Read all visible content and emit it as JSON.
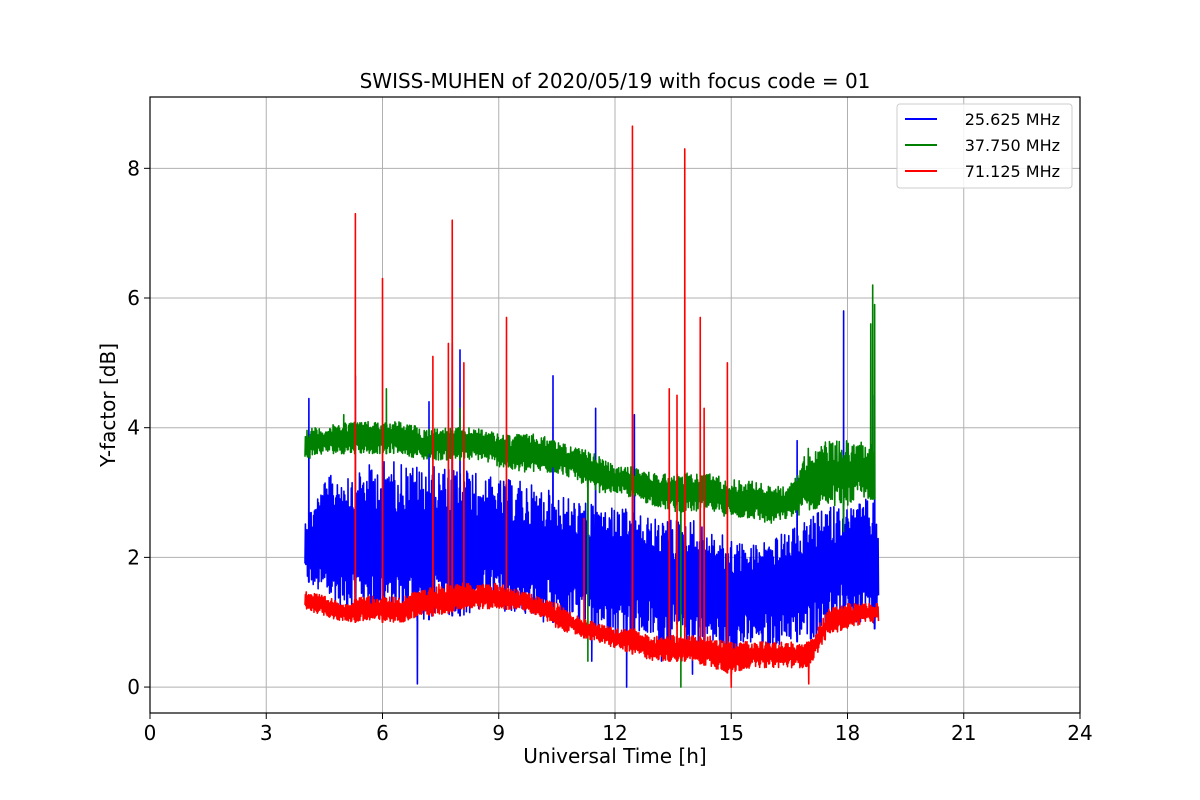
{
  "chart_data": {
    "type": "line",
    "title": "SWISS-MUHEN of 2020/05/19 with focus code = 01",
    "xlabel": "Universal Time [h]",
    "ylabel": "Y-factor [dB]",
    "xlim": [
      0,
      24
    ],
    "ylim": [
      -0.4,
      9.1
    ],
    "xticks": [
      "0",
      "3",
      "6",
      "9",
      "12",
      "15",
      "18",
      "21",
      "24"
    ],
    "yticks": [
      "0",
      "2",
      "4",
      "6",
      "8"
    ],
    "grid": true,
    "legend_position": "top-right",
    "series": [
      {
        "name": "25.625 MHz",
        "color": "#0000ff",
        "x": [
          4.0,
          4.5,
          5.0,
          5.5,
          6.0,
          6.5,
          7.0,
          7.5,
          8.0,
          8.5,
          9.0,
          9.5,
          10.0,
          10.5,
          11.0,
          11.5,
          12.0,
          12.5,
          13.0,
          13.5,
          14.0,
          14.5,
          15.0,
          15.5,
          16.0,
          16.5,
          17.0,
          17.5,
          18.0,
          18.5,
          18.8
        ],
        "low": [
          1.7,
          1.3,
          1.2,
          1.2,
          1.1,
          1.1,
          1.0,
          1.1,
          1.1,
          1.1,
          1.2,
          1.1,
          1.0,
          1.0,
          0.9,
          0.9,
          0.8,
          0.8,
          0.7,
          0.6,
          0.7,
          0.6,
          0.5,
          0.6,
          0.6,
          0.7,
          0.7,
          0.9,
          1.0,
          0.9,
          0.9
        ],
        "high": [
          2.6,
          3.2,
          3.4,
          3.4,
          3.5,
          3.5,
          3.4,
          3.4,
          3.4,
          3.3,
          3.2,
          3.2,
          3.1,
          3.0,
          2.9,
          2.8,
          2.8,
          2.7,
          2.6,
          2.6,
          2.6,
          2.4,
          2.3,
          2.2,
          2.3,
          2.4,
          2.6,
          2.8,
          2.8,
          2.9,
          2.8
        ],
        "spikes": [
          [
            4.1,
            4.45
          ],
          [
            5.3,
            4.8
          ],
          [
            7.2,
            4.4
          ],
          [
            7.8,
            5.3
          ],
          [
            8.0,
            5.2
          ],
          [
            10.4,
            4.8
          ],
          [
            11.5,
            4.3
          ],
          [
            12.5,
            4.2
          ],
          [
            16.7,
            3.8
          ],
          [
            17.9,
            5.8
          ],
          [
            18.7,
            4.5
          ]
        ],
        "dips": [
          [
            6.9,
            0.05
          ],
          [
            11.4,
            0.4
          ],
          [
            12.3,
            0.0
          ],
          [
            13.2,
            0.4
          ],
          [
            14.0,
            0.2
          ]
        ]
      },
      {
        "name": "37.750 MHz",
        "color": "#008000",
        "x": [
          4.0,
          4.5,
          5.0,
          5.5,
          6.0,
          6.5,
          7.0,
          7.5,
          8.0,
          8.5,
          9.0,
          9.5,
          10.0,
          10.5,
          11.0,
          11.5,
          12.0,
          12.5,
          13.0,
          13.5,
          14.0,
          14.5,
          15.0,
          15.5,
          16.0,
          16.5,
          17.0,
          17.5,
          18.0,
          18.5,
          18.7
        ],
        "low": [
          3.5,
          3.6,
          3.6,
          3.6,
          3.6,
          3.6,
          3.5,
          3.5,
          3.5,
          3.5,
          3.4,
          3.3,
          3.3,
          3.3,
          3.2,
          3.0,
          3.0,
          2.9,
          2.8,
          2.7,
          2.7,
          2.7,
          2.6,
          2.6,
          2.5,
          2.6,
          2.7,
          2.8,
          2.8,
          2.9,
          2.9
        ],
        "high": [
          4.0,
          4.0,
          4.1,
          4.1,
          4.1,
          4.1,
          4.0,
          4.0,
          4.0,
          4.0,
          3.9,
          3.9,
          3.9,
          3.8,
          3.7,
          3.6,
          3.4,
          3.4,
          3.3,
          3.3,
          3.3,
          3.3,
          3.2,
          3.2,
          3.1,
          3.1,
          3.7,
          3.8,
          3.8,
          3.8,
          3.8
        ],
        "spikes": [
          [
            5.0,
            4.2
          ],
          [
            6.1,
            4.6
          ],
          [
            8.0,
            4.3
          ],
          [
            18.6,
            5.6
          ],
          [
            18.65,
            6.2
          ],
          [
            18.7,
            5.9
          ]
        ],
        "dips": [
          [
            11.3,
            0.4
          ],
          [
            13.7,
            0.0
          ],
          [
            17.9,
            2.4
          ]
        ]
      },
      {
        "name": "71.125 MHz",
        "color": "#ff0000",
        "x": [
          4.0,
          4.5,
          5.0,
          5.5,
          6.0,
          6.5,
          7.0,
          7.5,
          8.0,
          8.5,
          9.0,
          9.5,
          10.0,
          10.5,
          11.0,
          11.5,
          12.0,
          12.5,
          13.0,
          13.5,
          14.0,
          14.5,
          15.0,
          15.5,
          16.0,
          16.5,
          17.0,
          17.5,
          18.0,
          18.5,
          18.8
        ],
        "low": [
          1.2,
          1.1,
          1.0,
          1.0,
          1.0,
          1.0,
          1.1,
          1.1,
          1.2,
          1.2,
          1.2,
          1.2,
          1.1,
          0.9,
          0.8,
          0.7,
          0.6,
          0.5,
          0.4,
          0.4,
          0.4,
          0.3,
          0.2,
          0.3,
          0.3,
          0.3,
          0.3,
          0.8,
          0.9,
          1.0,
          1.0
        ],
        "high": [
          1.5,
          1.4,
          1.3,
          1.4,
          1.4,
          1.4,
          1.5,
          1.6,
          1.6,
          1.6,
          1.6,
          1.5,
          1.4,
          1.3,
          1.1,
          1.0,
          0.9,
          0.9,
          0.8,
          0.8,
          0.8,
          0.8,
          0.7,
          0.7,
          0.7,
          0.7,
          0.7,
          1.2,
          1.3,
          1.3,
          1.3
        ],
        "spikes": [
          [
            5.3,
            7.3
          ],
          [
            6.0,
            6.3
          ],
          [
            7.3,
            5.1
          ],
          [
            7.7,
            5.3
          ],
          [
            7.8,
            7.2
          ],
          [
            8.1,
            5.0
          ],
          [
            9.2,
            5.7
          ],
          [
            11.2,
            2.6
          ],
          [
            12.45,
            8.65
          ],
          [
            13.4,
            4.6
          ],
          [
            13.6,
            4.5
          ],
          [
            13.8,
            8.3
          ],
          [
            14.2,
            5.7
          ],
          [
            14.3,
            4.3
          ],
          [
            14.9,
            5.0
          ]
        ],
        "dips": [
          [
            15.0,
            0.0
          ],
          [
            17.0,
            0.05
          ]
        ]
      }
    ]
  }
}
